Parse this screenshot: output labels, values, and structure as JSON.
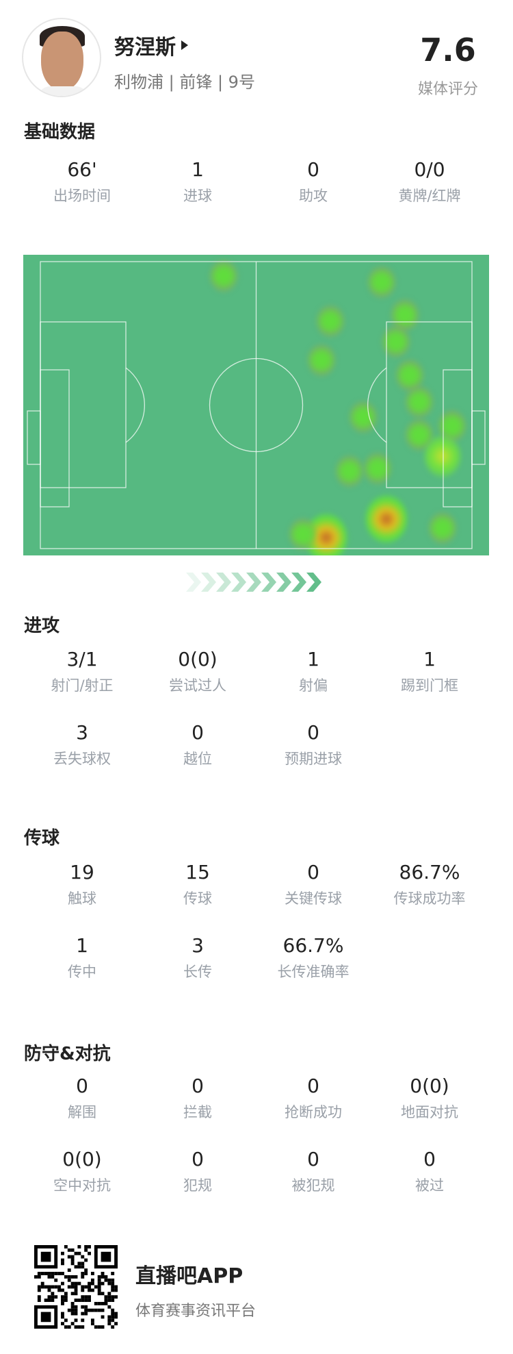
{
  "player": {
    "name": "努涅斯",
    "subtitle": "利物浦 | 前锋 | 9号",
    "rating": "7.6",
    "rating_label": "媒体评分"
  },
  "sections": {
    "basic": {
      "title": "基础数据",
      "rows": [
        [
          {
            "value": "66'",
            "label": "出场时间"
          },
          {
            "value": "1",
            "label": "进球"
          },
          {
            "value": "0",
            "label": "助攻"
          },
          {
            "value": "0/0",
            "label": "黄牌/红牌"
          }
        ]
      ]
    },
    "attack": {
      "title": "进攻",
      "rows": [
        [
          {
            "value": "3/1",
            "label": "射门/射正"
          },
          {
            "value": "0(0)",
            "label": "尝试过人"
          },
          {
            "value": "1",
            "label": "射偏"
          },
          {
            "value": "1",
            "label": "踢到门框"
          }
        ],
        [
          {
            "value": "3",
            "label": "丢失球权"
          },
          {
            "value": "0",
            "label": "越位"
          },
          {
            "value": "0",
            "label": "预期进球"
          }
        ]
      ]
    },
    "passing": {
      "title": "传球",
      "rows": [
        [
          {
            "value": "19",
            "label": "触球"
          },
          {
            "value": "15",
            "label": "传球"
          },
          {
            "value": "0",
            "label": "关键传球"
          },
          {
            "value": "86.7%",
            "label": "传球成功率"
          }
        ],
        [
          {
            "value": "1",
            "label": "传中"
          },
          {
            "value": "3",
            "label": "长传"
          },
          {
            "value": "66.7%",
            "label": "长传准确率"
          }
        ]
      ]
    },
    "defense": {
      "title": "防守&对抗",
      "rows": [
        [
          {
            "value": "0",
            "label": "解围"
          },
          {
            "value": "0",
            "label": "拦截"
          },
          {
            "value": "0",
            "label": "抢断成功"
          },
          {
            "value": "0(0)",
            "label": "地面对抗"
          }
        ],
        [
          {
            "value": "0(0)",
            "label": "空中对抗"
          },
          {
            "value": "0",
            "label": "犯规"
          },
          {
            "value": "0",
            "label": "被犯规"
          },
          {
            "value": "0",
            "label": "被过"
          }
        ]
      ]
    }
  },
  "heatmap": {
    "pitch_color": "#56b981",
    "attack_direction": "right",
    "spots": [
      {
        "i": 1
      },
      {
        "i": 1
      },
      {
        "i": 1
      },
      {
        "i": 1
      },
      {
        "i": 1
      },
      {
        "i": 1
      },
      {
        "i": 1
      },
      {
        "i": 1
      },
      {
        "i": 1
      },
      {
        "i": 1
      },
      {
        "i": 1
      },
      {
        "i": 2
      },
      {
        "i": 1
      },
      {
        "i": 1
      },
      {
        "i": 3
      },
      {
        "i": 1
      },
      {
        "i": 3
      },
      {
        "i": 1
      }
    ]
  },
  "footer": {
    "app_name": "直播吧APP",
    "tagline": "体育赛事资讯平台"
  },
  "colors": {
    "accent": "#56b981",
    "label": "#9aa0a8"
  }
}
